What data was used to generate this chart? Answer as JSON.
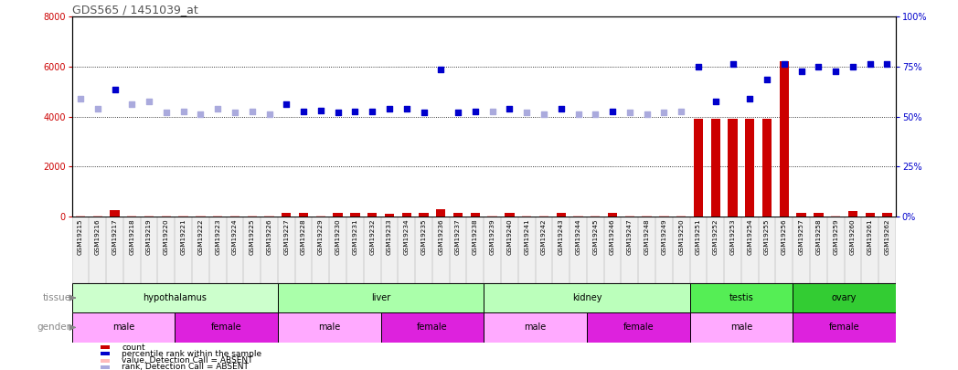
{
  "title": "GDS565 / 1451039_at",
  "samples": [
    "GSM19215",
    "GSM19216",
    "GSM19217",
    "GSM19218",
    "GSM19219",
    "GSM19220",
    "GSM19221",
    "GSM19222",
    "GSM19223",
    "GSM19224",
    "GSM19225",
    "GSM19226",
    "GSM19227",
    "GSM19228",
    "GSM19229",
    "GSM19230",
    "GSM19231",
    "GSM19232",
    "GSM19233",
    "GSM19234",
    "GSM19235",
    "GSM19236",
    "GSM19237",
    "GSM19238",
    "GSM19239",
    "GSM19240",
    "GSM19241",
    "GSM19242",
    "GSM19243",
    "GSM19244",
    "GSM19245",
    "GSM19246",
    "GSM19247",
    "GSM19248",
    "GSM19249",
    "GSM19250",
    "GSM19251",
    "GSM19252",
    "GSM19253",
    "GSM19254",
    "GSM19255",
    "GSM19256",
    "GSM19257",
    "GSM19258",
    "GSM19259",
    "GSM19260",
    "GSM19261",
    "GSM19262"
  ],
  "count_values": [
    50,
    50,
    250,
    50,
    50,
    50,
    50,
    50,
    50,
    50,
    50,
    50,
    150,
    150,
    50,
    150,
    150,
    150,
    100,
    150,
    150,
    300,
    150,
    150,
    50,
    150,
    50,
    50,
    150,
    50,
    50,
    150,
    50,
    50,
    50,
    50,
    3900,
    3900,
    3900,
    3900,
    3900,
    6200,
    150,
    150,
    50,
    200,
    150,
    150
  ],
  "count_absent": [
    true,
    true,
    false,
    true,
    true,
    true,
    true,
    true,
    true,
    true,
    true,
    true,
    false,
    false,
    true,
    false,
    false,
    false,
    false,
    false,
    false,
    false,
    false,
    false,
    true,
    false,
    true,
    true,
    false,
    true,
    true,
    false,
    true,
    true,
    true,
    true,
    false,
    false,
    false,
    false,
    false,
    false,
    false,
    false,
    true,
    false,
    false,
    false
  ],
  "rank_values": [
    4700,
    4300,
    5100,
    4500,
    4600,
    4150,
    4200,
    4100,
    4300,
    4150,
    4200,
    4100,
    4500,
    4200,
    4250,
    4150,
    4200,
    4200,
    4300,
    4300,
    4150,
    5900,
    4150,
    4200,
    4200,
    4300,
    4150,
    4100,
    4300,
    4100,
    4100,
    4200,
    4150,
    4100,
    4150,
    4200,
    6000,
    4600,
    6100,
    4700,
    5500,
    6100,
    5800,
    6000,
    5800,
    6000,
    6100,
    6100
  ],
  "rank_absent": [
    true,
    true,
    false,
    true,
    true,
    true,
    true,
    true,
    true,
    true,
    true,
    true,
    false,
    false,
    false,
    false,
    false,
    false,
    false,
    false,
    false,
    false,
    false,
    false,
    true,
    false,
    true,
    true,
    false,
    true,
    true,
    false,
    true,
    true,
    true,
    true,
    false,
    false,
    false,
    false,
    false,
    false,
    false,
    false,
    false,
    false,
    false,
    false
  ],
  "tissues": [
    {
      "name": "hypothalamus",
      "start": 0,
      "end": 12
    },
    {
      "name": "liver",
      "start": 12,
      "end": 24
    },
    {
      "name": "kidney",
      "start": 24,
      "end": 36
    },
    {
      "name": "testis",
      "start": 36,
      "end": 42
    },
    {
      "name": "ovary",
      "start": 42,
      "end": 48
    }
  ],
  "genders": [
    {
      "name": "male",
      "start": 0,
      "end": 6
    },
    {
      "name": "female",
      "start": 6,
      "end": 12
    },
    {
      "name": "male",
      "start": 12,
      "end": 18
    },
    {
      "name": "female",
      "start": 18,
      "end": 24
    },
    {
      "name": "male",
      "start": 24,
      "end": 30
    },
    {
      "name": "female",
      "start": 30,
      "end": 36
    },
    {
      "name": "male",
      "start": 36,
      "end": 42
    },
    {
      "name": "female",
      "start": 42,
      "end": 48
    }
  ],
  "tissue_colors": {
    "hypothalamus": "#ccffcc",
    "liver": "#aaffaa",
    "kidney": "#bbffbb",
    "testis": "#55ee55",
    "ovary": "#33cc33"
  },
  "gender_colors": {
    "male": "#ffaaff",
    "female": "#dd22dd"
  },
  "left_ylim": [
    0,
    8000
  ],
  "right_ylim": [
    0,
    100
  ],
  "left_yticks": [
    0,
    2000,
    4000,
    6000,
    8000
  ],
  "right_yticks": [
    0,
    25,
    50,
    75,
    100
  ],
  "count_color": "#cc0000",
  "count_absent_color": "#ffbbbb",
  "rank_color": "#0000cc",
  "rank_absent_color": "#aaaadd",
  "title_color": "#555555",
  "left_tick_color": "#cc0000",
  "right_tick_color": "#0000cc",
  "bg_color": "#ffffff"
}
